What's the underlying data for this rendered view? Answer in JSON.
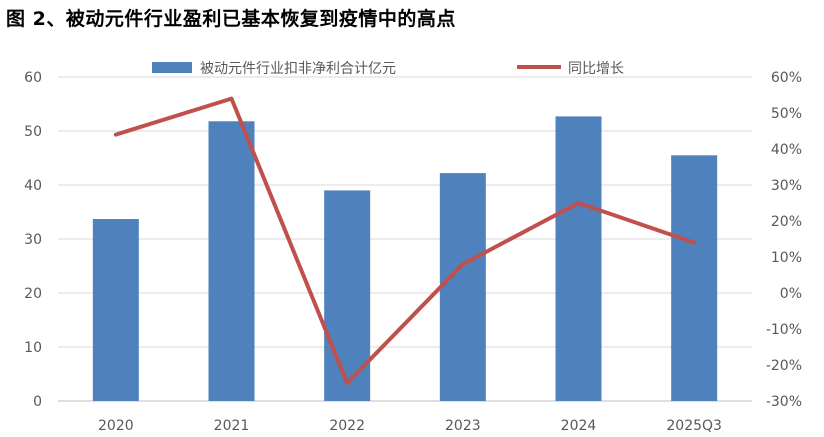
{
  "title": "图 2、被动元件行业盈利已基本恢复到疫情中的高点",
  "chart_data": {
    "type": "bar",
    "categories": [
      "2020",
      "2021",
      "2022",
      "2023",
      "2024",
      "2025Q3"
    ],
    "series": [
      {
        "name": "被动元件行业扣非净利合计亿元",
        "type": "bar",
        "axis": "left",
        "color": "#4F81BD",
        "values": [
          33.7,
          51.8,
          39.0,
          42.2,
          52.7,
          45.5
        ]
      },
      {
        "name": "同比增长",
        "type": "line",
        "axis": "right",
        "unit": "%",
        "color": "#C0504D",
        "values": [
          44,
          54,
          -25,
          8,
          25,
          14
        ]
      }
    ],
    "left_axis": {
      "min": 0,
      "max": 60,
      "ticks": [
        "0",
        "10",
        "20",
        "30",
        "40",
        "50",
        "60"
      ]
    },
    "right_axis": {
      "min": -30,
      "max": 60,
      "ticks": [
        "-30%",
        "-20%",
        "-10%",
        "0%",
        "10%",
        "20%",
        "30%",
        "40%",
        "50%",
        "60%"
      ]
    },
    "grid": true,
    "legend_position": "top"
  }
}
